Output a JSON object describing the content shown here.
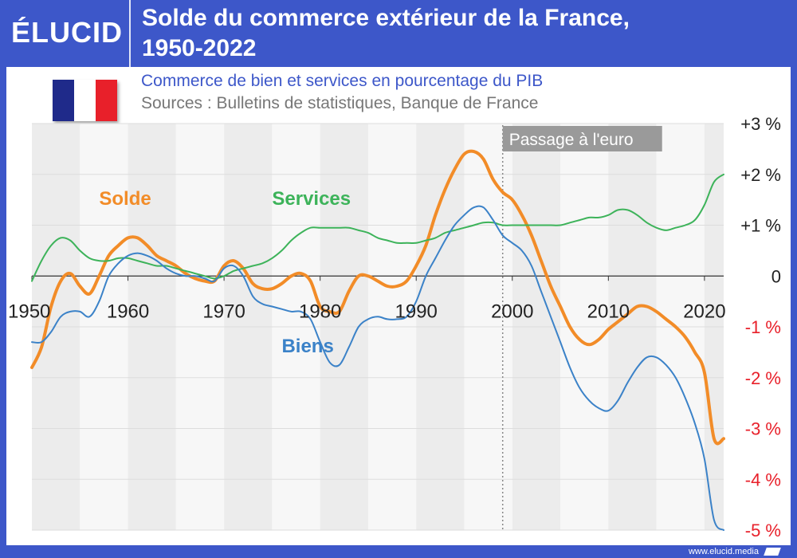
{
  "header": {
    "logo": "ÉLUCID",
    "title_line1": "Solde du commerce extérieur de la France,",
    "title_line2": "1950-2022"
  },
  "subtitle": "Commerce de bien et services en pourcentage du PIB",
  "source": "Sources : Bulletins de statistiques, Banque de France",
  "footer": "www.elucid.media",
  "flag_colors": [
    "#1f2a8a",
    "#ffffff",
    "#e8202a"
  ],
  "chart_data": {
    "type": "line",
    "x_label_values": [
      "1950",
      "1960",
      "1970",
      "1980",
      "1990",
      "2000",
      "2010",
      "2020"
    ],
    "y_label_values": [
      "+3 %",
      "+2 %",
      "+1 %",
      "0",
      "-1 %",
      "-2 %",
      "-3 %",
      "-4 %",
      "-5 %"
    ],
    "xlim": [
      1950,
      2022
    ],
    "ylim": [
      -5,
      3
    ],
    "grid": "alternating vertical bands per 5 years",
    "annotation": {
      "x": 1999,
      "label": "Passage à l'euro"
    },
    "series": [
      {
        "name": "Solde",
        "color": "#f28c28",
        "label_x": 1957,
        "label_y": 1.4,
        "x": [
          1950,
          1951,
          1952,
          1953,
          1954,
          1955,
          1956,
          1957,
          1958,
          1959,
          1960,
          1961,
          1962,
          1963,
          1964,
          1965,
          1966,
          1967,
          1968,
          1969,
          1970,
          1971,
          1972,
          1973,
          1974,
          1975,
          1976,
          1977,
          1978,
          1979,
          1980,
          1981,
          1982,
          1983,
          1984,
          1985,
          1986,
          1987,
          1988,
          1989,
          1990,
          1991,
          1992,
          1993,
          1994,
          1995,
          1996,
          1997,
          1998,
          1999,
          2000,
          2001,
          2002,
          2003,
          2004,
          2005,
          2006,
          2007,
          2008,
          2009,
          2010,
          2011,
          2012,
          2013,
          2014,
          2015,
          2016,
          2017,
          2018,
          2019,
          2020,
          2021,
          2022
        ],
        "values": [
          -1.8,
          -1.4,
          -0.6,
          -0.1,
          0.05,
          -0.2,
          -0.35,
          0.0,
          0.4,
          0.6,
          0.75,
          0.75,
          0.6,
          0.4,
          0.3,
          0.2,
          0.05,
          -0.05,
          -0.1,
          -0.1,
          0.2,
          0.3,
          0.15,
          -0.15,
          -0.25,
          -0.25,
          -0.15,
          0.0,
          0.05,
          -0.1,
          -0.6,
          -0.7,
          -0.7,
          -0.3,
          0.0,
          0.0,
          -0.1,
          -0.2,
          -0.2,
          -0.1,
          0.2,
          0.6,
          1.2,
          1.7,
          2.1,
          2.4,
          2.45,
          2.3,
          1.9,
          1.65,
          1.5,
          1.2,
          0.8,
          0.3,
          -0.2,
          -0.6,
          -1.0,
          -1.25,
          -1.35,
          -1.25,
          -1.05,
          -0.9,
          -0.75,
          -0.6,
          -0.6,
          -0.7,
          -0.85,
          -1.0,
          -1.2,
          -1.5,
          -1.9,
          -3.2,
          -3.2
        ]
      },
      {
        "name": "Services",
        "color": "#3db35a",
        "label_x": 1975,
        "label_y": 1.4,
        "x": [
          1950,
          1951,
          1952,
          1953,
          1954,
          1955,
          1956,
          1957,
          1958,
          1959,
          1960,
          1961,
          1962,
          1963,
          1964,
          1965,
          1966,
          1967,
          1968,
          1969,
          1970,
          1971,
          1972,
          1973,
          1974,
          1975,
          1976,
          1977,
          1978,
          1979,
          1980,
          1981,
          1982,
          1983,
          1984,
          1985,
          1986,
          1987,
          1988,
          1989,
          1990,
          1991,
          1992,
          1993,
          1994,
          1995,
          1996,
          1997,
          1998,
          1999,
          2000,
          2001,
          2002,
          2003,
          2004,
          2005,
          2006,
          2007,
          2008,
          2009,
          2010,
          2011,
          2012,
          2013,
          2014,
          2015,
          2016,
          2017,
          2018,
          2019,
          2020,
          2021,
          2022
        ],
        "values": [
          -0.1,
          0.3,
          0.6,
          0.75,
          0.7,
          0.5,
          0.35,
          0.3,
          0.3,
          0.35,
          0.35,
          0.3,
          0.25,
          0.2,
          0.2,
          0.15,
          0.1,
          0.05,
          0.0,
          -0.05,
          0.0,
          0.1,
          0.15,
          0.2,
          0.25,
          0.35,
          0.5,
          0.7,
          0.85,
          0.95,
          0.95,
          0.95,
          0.95,
          0.95,
          0.9,
          0.85,
          0.75,
          0.7,
          0.65,
          0.65,
          0.65,
          0.7,
          0.75,
          0.85,
          0.9,
          0.95,
          1.0,
          1.05,
          1.05,
          1.0,
          1.0,
          1.0,
          1.0,
          1.0,
          1.0,
          1.0,
          1.05,
          1.1,
          1.15,
          1.15,
          1.2,
          1.3,
          1.3,
          1.2,
          1.05,
          0.95,
          0.9,
          0.95,
          1.0,
          1.1,
          1.4,
          1.85,
          2.0
        ]
      },
      {
        "name": "Biens",
        "color": "#3b82c8",
        "label_x": 1976,
        "label_y": -1.5,
        "x": [
          1950,
          1951,
          1952,
          1953,
          1954,
          1955,
          1956,
          1957,
          1958,
          1959,
          1960,
          1961,
          1962,
          1963,
          1964,
          1965,
          1966,
          1967,
          1968,
          1969,
          1970,
          1971,
          1972,
          1973,
          1974,
          1975,
          1976,
          1977,
          1978,
          1979,
          1980,
          1981,
          1982,
          1983,
          1984,
          1985,
          1986,
          1987,
          1988,
          1989,
          1990,
          1991,
          1992,
          1993,
          1994,
          1995,
          1996,
          1997,
          1998,
          1999,
          2000,
          2001,
          2002,
          2003,
          2004,
          2005,
          2006,
          2007,
          2008,
          2009,
          2010,
          2011,
          2012,
          2013,
          2014,
          2015,
          2016,
          2017,
          2018,
          2019,
          2020,
          2021,
          2022
        ],
        "values": [
          -1.3,
          -1.3,
          -1.1,
          -0.8,
          -0.7,
          -0.7,
          -0.8,
          -0.5,
          0.0,
          0.25,
          0.4,
          0.45,
          0.4,
          0.3,
          0.15,
          0.05,
          0.0,
          0.0,
          -0.05,
          -0.1,
          0.15,
          0.2,
          0.0,
          -0.4,
          -0.55,
          -0.6,
          -0.65,
          -0.7,
          -0.7,
          -0.85,
          -1.3,
          -1.7,
          -1.75,
          -1.4,
          -1.0,
          -0.85,
          -0.8,
          -0.85,
          -0.85,
          -0.8,
          -0.5,
          0.0,
          0.35,
          0.7,
          1.0,
          1.2,
          1.35,
          1.35,
          1.1,
          0.8,
          0.65,
          0.5,
          0.2,
          -0.3,
          -0.8,
          -1.3,
          -1.8,
          -2.2,
          -2.45,
          -2.6,
          -2.65,
          -2.45,
          -2.1,
          -1.8,
          -1.6,
          -1.6,
          -1.75,
          -2.0,
          -2.4,
          -2.9,
          -3.6,
          -4.8,
          -5.0
        ]
      }
    ]
  }
}
